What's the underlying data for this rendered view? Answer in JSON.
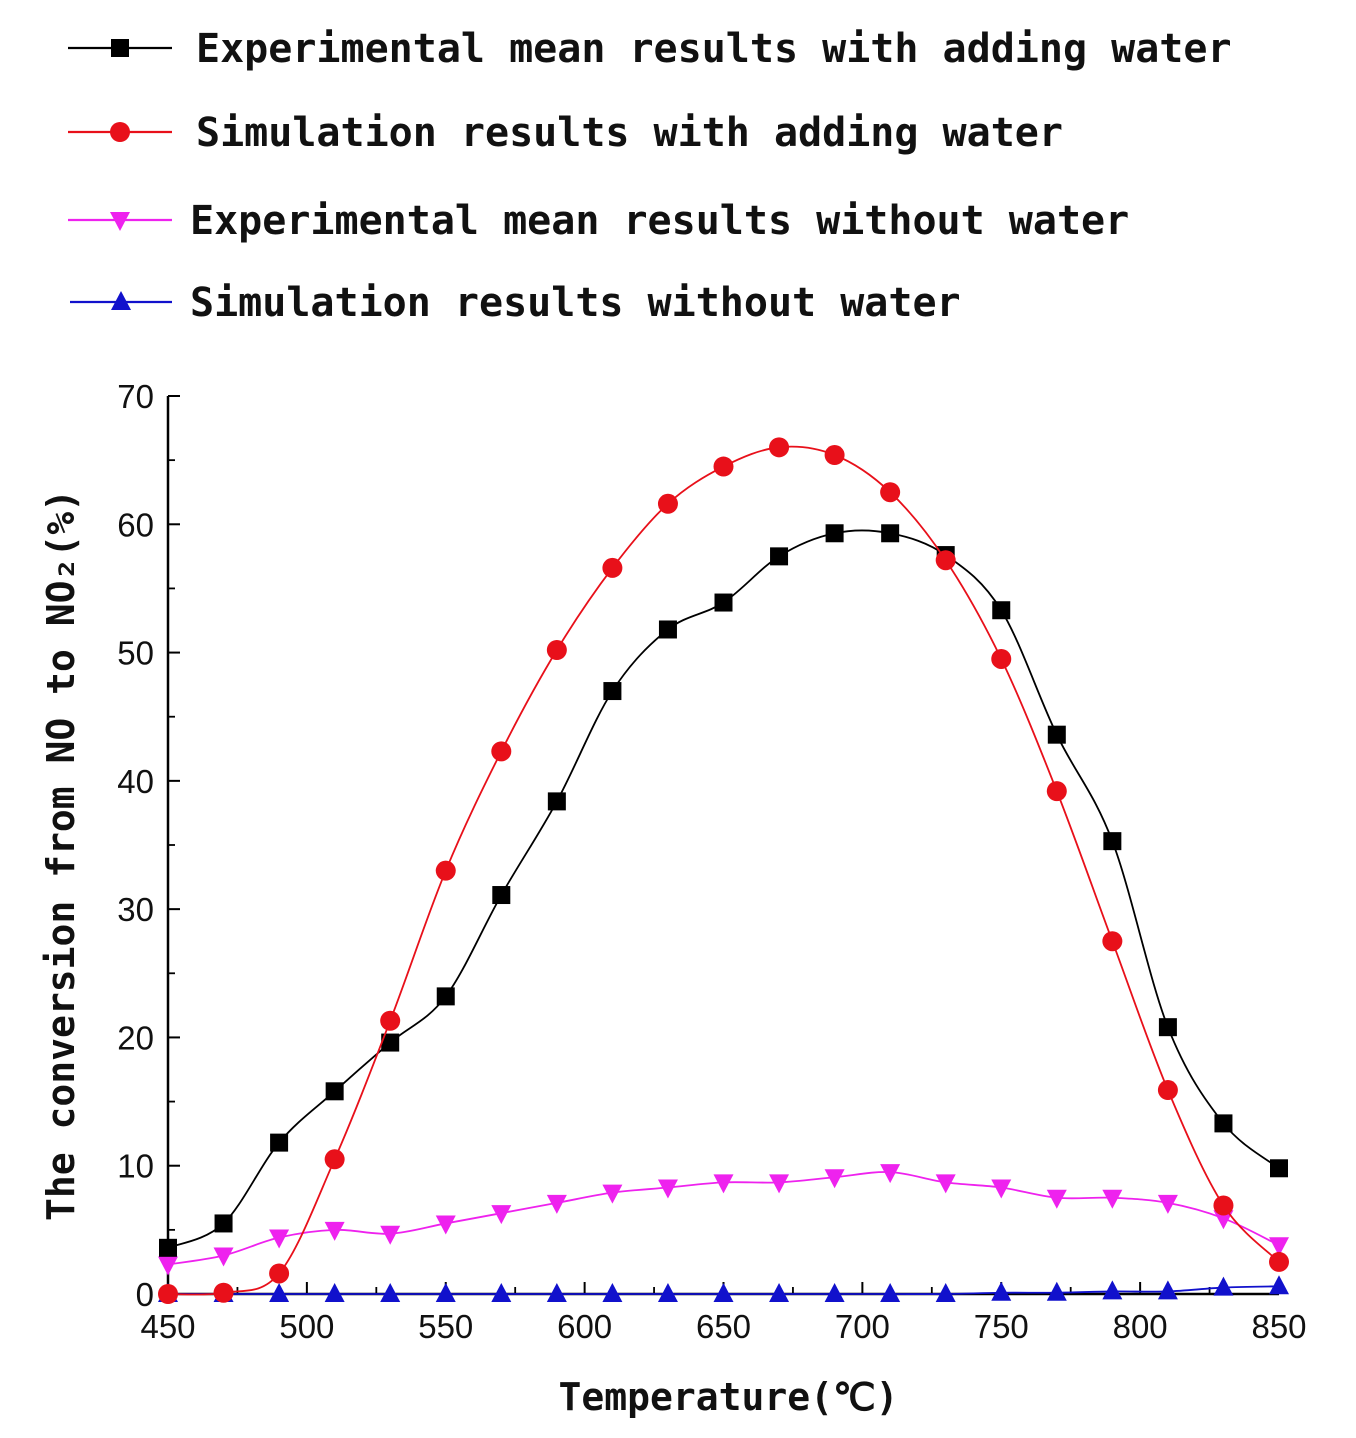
{
  "chart_data": {
    "type": "line",
    "xlabel": "Temperature(℃)",
    "ylabel": "The conversion from NO to NO₂(%)",
    "xlim": [
      450,
      850
    ],
    "ylim": [
      0,
      70
    ],
    "x_ticks": [
      450,
      500,
      550,
      600,
      650,
      700,
      750,
      800,
      850
    ],
    "y_ticks": [
      0,
      10,
      20,
      30,
      40,
      50,
      60,
      70
    ],
    "legend_position": "top",
    "x": [
      450,
      470,
      490,
      510,
      530,
      550,
      570,
      590,
      610,
      630,
      650,
      670,
      690,
      710,
      730,
      750,
      770,
      790,
      810,
      830,
      850
    ],
    "series": [
      {
        "name": "Experimental mean results with adding water",
        "marker": "square",
        "color": "#000000",
        "values": [
          3.6,
          5.5,
          11.8,
          15.8,
          19.6,
          23.2,
          31.1,
          38.4,
          47.0,
          51.8,
          53.9,
          57.5,
          59.3,
          59.3,
          57.6,
          53.3,
          43.6,
          35.3,
          20.8,
          13.3,
          9.8
        ]
      },
      {
        "name": "Simulation results with adding water",
        "marker": "circle",
        "color": "#e8101a",
        "values": [
          0.0,
          0.1,
          1.6,
          10.5,
          21.3,
          33.0,
          42.3,
          50.2,
          56.6,
          61.6,
          64.5,
          66.0,
          65.4,
          62.5,
          57.2,
          49.5,
          39.2,
          27.5,
          15.9,
          6.9,
          2.5
        ]
      },
      {
        "name": "Experimental mean results without water",
        "marker": "triangle-down",
        "color": "#ee22ee",
        "values": [
          2.3,
          3.0,
          4.4,
          5.0,
          4.7,
          5.5,
          6.3,
          7.1,
          7.9,
          8.3,
          8.7,
          8.7,
          9.1,
          9.5,
          8.7,
          8.3,
          7.5,
          7.5,
          7.1,
          5.9,
          3.8
        ]
      },
      {
        "name": "Simulation results without water",
        "marker": "triangle-up",
        "color": "#1111cc",
        "values": [
          0.0,
          0.0,
          0.0,
          0.0,
          0.0,
          0.0,
          0.0,
          0.0,
          0.0,
          0.0,
          0.0,
          0.0,
          0.0,
          0.0,
          0.0,
          0.1,
          0.1,
          0.2,
          0.2,
          0.5,
          0.6
        ]
      }
    ]
  }
}
